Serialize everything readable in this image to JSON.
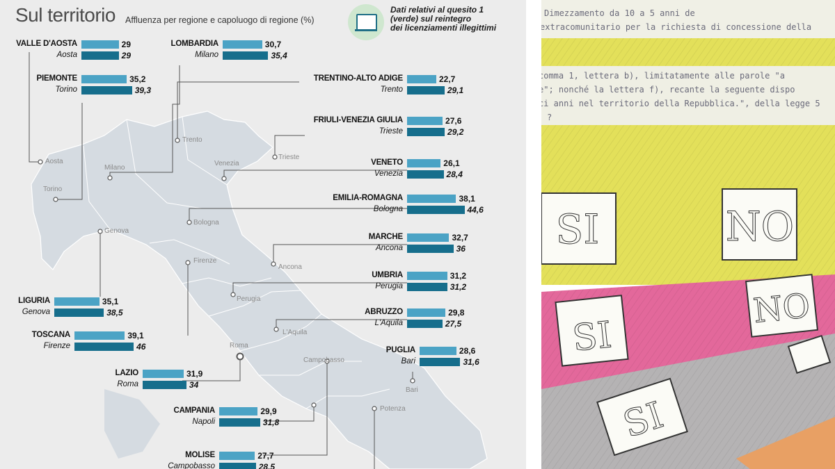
{
  "header": {
    "title": "Sul territorio",
    "subtitle": "Affluenza per regione e capoluogo di regione (%)",
    "legend_lines": [
      "Dati relativi al quesito 1",
      "(verde) sul reintegro",
      "dei licenziamenti illegittimi"
    ]
  },
  "colors": {
    "regione": "#4ba3c5",
    "capoluogo": "#166e8c",
    "background": "#ececec",
    "map": "#d6dbe0"
  },
  "chart_data": {
    "type": "bar",
    "orientation": "horizontal",
    "categories": [
      "VALLE D'AOSTA",
      "PIEMONTE",
      "LOMBARDIA",
      "TRENTINO-ALTO ADIGE",
      "FRIULI-VENEZIA GIULIA",
      "VENETO",
      "EMILIA-ROMAGNA",
      "MARCHE",
      "UMBRIA",
      "ABRUZZO",
      "LIGURIA",
      "TOSCANA",
      "PUGLIA",
      "LAZIO",
      "CAMPANIA",
      "MOLISE"
    ],
    "capoluoghi": [
      "Aosta",
      "Torino",
      "Milano",
      "Trento",
      "Trieste",
      "Venezia",
      "Bologna",
      "Ancona",
      "Perugia",
      "L'Aquila",
      "Genova",
      "Firenze",
      "Bari",
      "Roma",
      "Napoli",
      "Campobasso"
    ],
    "series": [
      {
        "values": [
          29,
          35.2,
          30.7,
          22.7,
          27.6,
          26.1,
          38.1,
          32.7,
          31.2,
          29.8,
          35.1,
          39.1,
          28.6,
          31.9,
          29.9,
          27.7
        ],
        "labels": [
          "29",
          "35,2",
          "30,7",
          "22,7",
          "27,6",
          "26,1",
          "38,1",
          "32,7",
          "31,2",
          "29,8",
          "35,1",
          "39,1",
          "28,6",
          "31,9",
          "29,9",
          "27,7"
        ]
      },
      {
        "values": [
          29,
          39.3,
          35.4,
          29.1,
          29.2,
          28.4,
          44.6,
          36,
          31.2,
          27.5,
          38.5,
          46,
          31.6,
          34,
          31.8,
          28.5
        ],
        "labels": [
          "29",
          "39,3",
          "35,4",
          "29,1",
          "29,2",
          "28,4",
          "44,6",
          "36",
          "31,2",
          "27,5",
          "38,5",
          "46",
          "31,6",
          "34",
          "31,8",
          "28,5"
        ]
      }
    ]
  },
  "map_labels": [
    "Aosta",
    "Torino",
    "Milano",
    "Trento",
    "Venezia",
    "Trieste",
    "Genova",
    "Bologna",
    "Firenze",
    "Ancona",
    "Perugia",
    "L'Aquila",
    "Roma",
    "Campobasso",
    "Bari",
    "Potenza"
  ],
  "photo": {
    "ballot_lines": [
      "Dimezzamento da 10 a 5 anni de",
      "extracomunitario per la richiesta di concessione della",
      "comma 1, lettera b), limitatamente alle parole \"a",
      "e\"; nonché la lettera f), recante la seguente dispo",
      "ci anni nel territorio della Repubblica.\", della legge 5",
      "?"
    ],
    "box_yes": "SI",
    "box_no": "NO"
  }
}
